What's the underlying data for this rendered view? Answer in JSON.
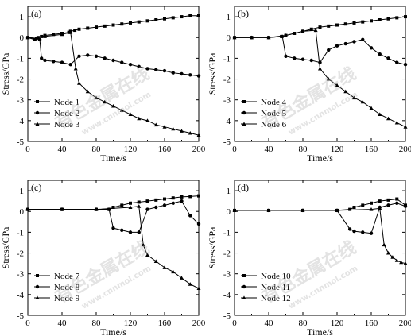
{
  "watermark": {
    "cn": "有色金属在线",
    "url": "www.cnnmol.com"
  },
  "chart_data": [
    {
      "type": "line",
      "panel_label": "(a)",
      "xlabel": "Time/s",
      "ylabel": "Stress/GPa",
      "xlim": [
        0,
        200
      ],
      "ylim": [
        -5,
        1.5
      ],
      "xticks": [
        "0",
        "40",
        "80",
        "120",
        "160",
        "200"
      ],
      "yticks": [
        "-5",
        "-4",
        "-3",
        "-2",
        "-1",
        "0",
        "1"
      ],
      "legend_position": "bottom-left",
      "series": [
        {
          "name": "Node 1",
          "marker": "square",
          "x": [
            0,
            8,
            12,
            16,
            20,
            30,
            40,
            48,
            50,
            55,
            60,
            70,
            80,
            90,
            100,
            110,
            120,
            130,
            140,
            150,
            160,
            170,
            180,
            190,
            200
          ],
          "y": [
            0,
            -0.1,
            0,
            0.05,
            0.1,
            0.15,
            0.2,
            0.25,
            0.3,
            0.35,
            0.4,
            0.45,
            0.5,
            0.55,
            0.6,
            0.65,
            0.7,
            0.75,
            0.8,
            0.85,
            0.9,
            0.95,
            1.0,
            1.05,
            1.05
          ]
        },
        {
          "name": "Node 2",
          "marker": "circle",
          "x": [
            0,
            10,
            14,
            16,
            20,
            30,
            40,
            50,
            60,
            70,
            80,
            90,
            100,
            110,
            120,
            130,
            140,
            150,
            160,
            170,
            180,
            190,
            200
          ],
          "y": [
            0,
            -0.05,
            -0.1,
            -1.0,
            -1.1,
            -1.15,
            -1.2,
            -1.3,
            -0.9,
            -0.85,
            -0.9,
            -1.0,
            -1.1,
            -1.2,
            -1.3,
            -1.4,
            -1.5,
            -1.55,
            -1.6,
            -1.7,
            -1.75,
            -1.8,
            -1.85
          ]
        },
        {
          "name": "Node 3",
          "marker": "triangle",
          "x": [
            0,
            20,
            40,
            50,
            56,
            60,
            70,
            80,
            90,
            100,
            110,
            120,
            130,
            140,
            150,
            160,
            170,
            180,
            190,
            200
          ],
          "y": [
            0,
            0.05,
            0.15,
            0.25,
            -1.5,
            -2.2,
            -2.6,
            -2.9,
            -3.1,
            -3.3,
            -3.5,
            -3.7,
            -3.9,
            -4.0,
            -4.2,
            -4.3,
            -4.4,
            -4.5,
            -4.6,
            -4.7
          ]
        }
      ]
    },
    {
      "type": "line",
      "panel_label": "(b)",
      "xlabel": "Time/s",
      "ylabel": "Stress/GPa",
      "xlim": [
        0,
        200
      ],
      "ylim": [
        -5,
        1.5
      ],
      "xticks": [
        "0",
        "40",
        "80",
        "120",
        "160",
        "200"
      ],
      "yticks": [
        "-5",
        "-4",
        "-3",
        "-2",
        "-1",
        "0",
        "1"
      ],
      "legend_position": "bottom-left",
      "series": [
        {
          "name": "Node 4",
          "marker": "square",
          "x": [
            0,
            20,
            40,
            55,
            60,
            70,
            80,
            90,
            100,
            110,
            120,
            130,
            140,
            150,
            160,
            170,
            180,
            190,
            200
          ],
          "y": [
            0,
            0,
            0,
            0.05,
            0.1,
            0.2,
            0.3,
            0.4,
            0.5,
            0.55,
            0.6,
            0.65,
            0.7,
            0.75,
            0.8,
            0.85,
            0.9,
            0.95,
            1.0
          ]
        },
        {
          "name": "Node 5",
          "marker": "circle",
          "x": [
            0,
            20,
            40,
            56,
            60,
            70,
            80,
            90,
            100,
            110,
            120,
            130,
            140,
            150,
            160,
            170,
            180,
            190,
            200
          ],
          "y": [
            0,
            0,
            0,
            0.05,
            -0.9,
            -1.0,
            -1.05,
            -1.1,
            -1.2,
            -0.6,
            -0.4,
            -0.3,
            -0.2,
            -0.1,
            -0.5,
            -0.8,
            -1.0,
            -1.2,
            -1.3
          ]
        },
        {
          "name": "Node 6",
          "marker": "triangle",
          "x": [
            0,
            20,
            40,
            60,
            80,
            95,
            100,
            110,
            120,
            130,
            140,
            150,
            160,
            170,
            180,
            190,
            200
          ],
          "y": [
            0,
            0,
            0,
            0.1,
            0.3,
            0.35,
            -1.5,
            -2.0,
            -2.3,
            -2.6,
            -2.9,
            -3.1,
            -3.4,
            -3.7,
            -3.9,
            -4.1,
            -4.3
          ]
        }
      ]
    },
    {
      "type": "line",
      "panel_label": "(c)",
      "xlabel": "Time/s",
      "ylabel": "Stress/GPa",
      "xlim": [
        0,
        200
      ],
      "ylim": [
        -5,
        1.5
      ],
      "xticks": [
        "0",
        "40",
        "80",
        "120",
        "160",
        "200"
      ],
      "yticks": [
        "-5",
        "-4",
        "-3",
        "-2",
        "-1",
        "0",
        "1"
      ],
      "legend_position": "bottom-left",
      "series": [
        {
          "name": "Node 7",
          "marker": "square",
          "x": [
            0,
            40,
            80,
            95,
            100,
            110,
            120,
            130,
            140,
            150,
            160,
            170,
            180,
            190,
            200
          ],
          "y": [
            0.1,
            0.1,
            0.1,
            0.1,
            0.2,
            0.3,
            0.4,
            0.45,
            0.5,
            0.55,
            0.6,
            0.65,
            0.7,
            0.72,
            0.75
          ]
        },
        {
          "name": "Node 8",
          "marker": "circle",
          "x": [
            0,
            40,
            80,
            95,
            100,
            110,
            120,
            130,
            140,
            150,
            160,
            170,
            180,
            190,
            200
          ],
          "y": [
            0.1,
            0.1,
            0.1,
            0.1,
            -0.8,
            -0.9,
            -1.0,
            -1.0,
            0.1,
            0.2,
            0.3,
            0.4,
            0.5,
            -0.2,
            -0.6
          ]
        },
        {
          "name": "Node 9",
          "marker": "triangle",
          "x": [
            0,
            40,
            80,
            120,
            130,
            135,
            140,
            150,
            160,
            170,
            180,
            190,
            200
          ],
          "y": [
            0.1,
            0.1,
            0.1,
            0.2,
            0.25,
            -1.6,
            -2.1,
            -2.4,
            -2.7,
            -2.9,
            -3.2,
            -3.5,
            -3.7
          ]
        }
      ]
    },
    {
      "type": "line",
      "panel_label": "(d)",
      "xlabel": "Time/s",
      "ylabel": "Stress/GPa",
      "xlim": [
        0,
        200
      ],
      "ylim": [
        -5,
        1.5
      ],
      "xticks": [
        "0",
        "40",
        "80",
        "120",
        "160",
        "200"
      ],
      "yticks": [
        "-5",
        "-4",
        "-3",
        "-2",
        "-1",
        "0",
        "1"
      ],
      "legend_position": "bottom-left",
      "series": [
        {
          "name": "Node 10",
          "marker": "square",
          "x": [
            0,
            40,
            80,
            120,
            135,
            140,
            150,
            160,
            170,
            180,
            190,
            200
          ],
          "y": [
            0.05,
            0.05,
            0.05,
            0.05,
            0.1,
            0.2,
            0.3,
            0.4,
            0.5,
            0.55,
            0.6,
            0.3
          ]
        },
        {
          "name": "Node 11",
          "marker": "circle",
          "x": [
            0,
            40,
            80,
            120,
            135,
            140,
            150,
            160,
            170,
            180,
            190,
            200
          ],
          "y": [
            0.05,
            0.05,
            0.05,
            0.05,
            -0.85,
            -0.95,
            -1.0,
            -1.05,
            0.2,
            0.3,
            0.4,
            0.25
          ]
        },
        {
          "name": "Node 12",
          "marker": "triangle",
          "x": [
            0,
            40,
            80,
            120,
            160,
            170,
            175,
            180,
            185,
            190,
            195,
            200
          ],
          "y": [
            0.05,
            0.05,
            0.05,
            0.05,
            0.1,
            0.15,
            -1.6,
            -2.0,
            -2.2,
            -2.35,
            -2.45,
            -2.5
          ]
        }
      ]
    }
  ]
}
